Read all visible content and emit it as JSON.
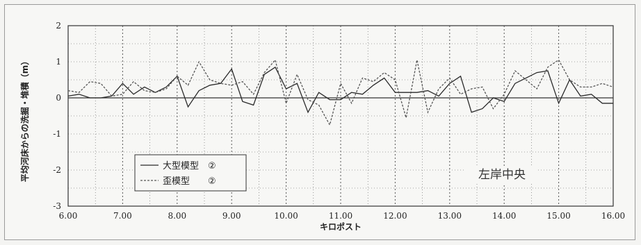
{
  "chart_data": {
    "type": "line",
    "xlabel": "キロポスト",
    "ylabel": "平均河床からの洗掘・堆積（m）",
    "xlim": [
      6.0,
      16.0
    ],
    "ylim": [
      -3,
      2
    ],
    "x_ticks": [
      "6.00",
      "7.00",
      "8.00",
      "9.00",
      "10.00",
      "11.00",
      "12.00",
      "13.00",
      "14.00",
      "15.00",
      "16.00"
    ],
    "y_ticks": [
      "2",
      "1",
      "0",
      "-1",
      "-2",
      "-3"
    ],
    "grid": true,
    "legend_position": "bottom-left",
    "annotation": "左岸中央",
    "series": [
      {
        "name": "大型模型　②",
        "style": "solid",
        "color": "#2a2a2a",
        "points": [
          [
            6.0,
            0.05
          ],
          [
            6.2,
            0.1
          ],
          [
            6.4,
            0.0
          ],
          [
            6.6,
            0.0
          ],
          [
            6.8,
            0.05
          ],
          [
            7.0,
            0.4
          ],
          [
            7.2,
            0.1
          ],
          [
            7.4,
            0.3
          ],
          [
            7.6,
            0.15
          ],
          [
            7.8,
            0.3
          ],
          [
            8.0,
            0.6
          ],
          [
            8.2,
            -0.25
          ],
          [
            8.4,
            0.2
          ],
          [
            8.6,
            0.35
          ],
          [
            8.8,
            0.4
          ],
          [
            9.0,
            0.8
          ],
          [
            9.2,
            -0.1
          ],
          [
            9.4,
            -0.2
          ],
          [
            9.6,
            0.65
          ],
          [
            9.8,
            0.85
          ],
          [
            10.0,
            0.25
          ],
          [
            10.2,
            0.4
          ],
          [
            10.4,
            -0.4
          ],
          [
            10.6,
            0.15
          ],
          [
            10.8,
            -0.05
          ],
          [
            11.0,
            -0.05
          ],
          [
            11.2,
            0.15
          ],
          [
            11.4,
            0.1
          ],
          [
            11.6,
            0.35
          ],
          [
            11.8,
            0.55
          ],
          [
            12.0,
            0.15
          ],
          [
            12.2,
            0.15
          ],
          [
            12.4,
            0.15
          ],
          [
            12.6,
            0.2
          ],
          [
            12.8,
            0.05
          ],
          [
            13.0,
            0.4
          ],
          [
            13.2,
            0.6
          ],
          [
            13.4,
            -0.4
          ],
          [
            13.6,
            -0.3
          ],
          [
            13.8,
            0.0
          ],
          [
            14.0,
            -0.1
          ],
          [
            14.2,
            0.4
          ],
          [
            14.4,
            0.55
          ],
          [
            14.6,
            0.7
          ],
          [
            14.8,
            0.75
          ],
          [
            15.0,
            -0.15
          ],
          [
            15.2,
            0.5
          ],
          [
            15.4,
            0.05
          ],
          [
            15.6,
            0.1
          ],
          [
            15.8,
            -0.15
          ],
          [
            16.0,
            -0.15
          ]
        ]
      },
      {
        "name": "歪模型　　②",
        "style": "dashed",
        "color": "#555555",
        "points": [
          [
            6.0,
            0.2
          ],
          [
            6.2,
            0.15
          ],
          [
            6.4,
            0.45
          ],
          [
            6.6,
            0.4
          ],
          [
            6.8,
            0.05
          ],
          [
            7.0,
            0.1
          ],
          [
            7.2,
            0.45
          ],
          [
            7.4,
            0.2
          ],
          [
            7.6,
            0.15
          ],
          [
            7.8,
            0.25
          ],
          [
            8.0,
            0.6
          ],
          [
            8.2,
            0.35
          ],
          [
            8.4,
            1.0
          ],
          [
            8.6,
            0.5
          ],
          [
            8.8,
            0.4
          ],
          [
            9.0,
            0.35
          ],
          [
            9.2,
            0.45
          ],
          [
            9.4,
            0.1
          ],
          [
            9.6,
            0.7
          ],
          [
            9.8,
            1.05
          ],
          [
            10.0,
            -0.15
          ],
          [
            10.2,
            0.65
          ],
          [
            10.4,
            -0.05
          ],
          [
            10.6,
            -0.2
          ],
          [
            10.8,
            -0.75
          ],
          [
            11.0,
            0.4
          ],
          [
            11.2,
            -0.15
          ],
          [
            11.4,
            0.55
          ],
          [
            11.6,
            0.45
          ],
          [
            11.8,
            0.7
          ],
          [
            12.0,
            0.5
          ],
          [
            12.2,
            -0.55
          ],
          [
            12.4,
            1.05
          ],
          [
            12.6,
            -0.4
          ],
          [
            12.8,
            0.25
          ],
          [
            13.0,
            0.55
          ],
          [
            13.2,
            0.1
          ],
          [
            13.4,
            0.25
          ],
          [
            13.6,
            0.3
          ],
          [
            13.8,
            -0.3
          ],
          [
            14.0,
            0.1
          ],
          [
            14.2,
            0.75
          ],
          [
            14.4,
            0.5
          ],
          [
            14.6,
            0.25
          ],
          [
            14.8,
            0.85
          ],
          [
            15.0,
            1.05
          ],
          [
            15.2,
            0.5
          ],
          [
            15.4,
            0.3
          ],
          [
            15.6,
            0.3
          ],
          [
            15.8,
            0.4
          ],
          [
            16.0,
            0.3
          ]
        ]
      }
    ]
  }
}
